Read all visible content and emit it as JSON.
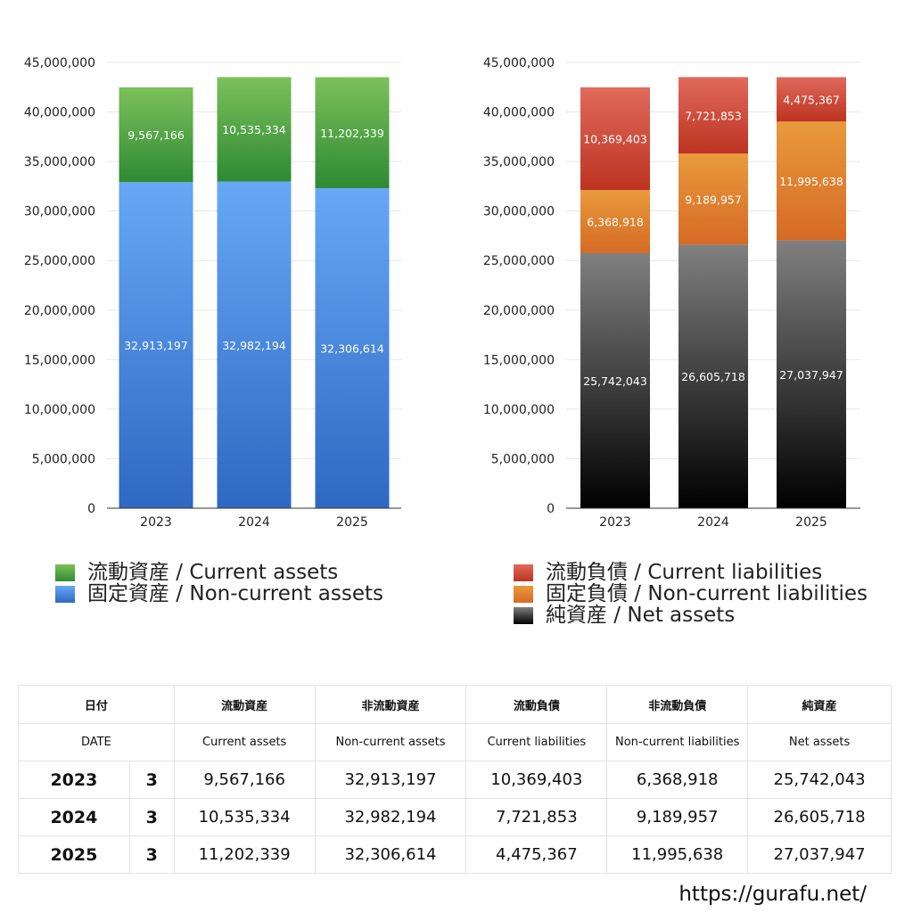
{
  "chart_data": [
    {
      "type": "bar",
      "stacked": true,
      "categories": [
        "2023",
        "2024",
        "2025"
      ],
      "ylim": [
        0,
        45000000
      ],
      "yticks": [
        "0",
        "5,000,000",
        "10,000,000",
        "15,000,000",
        "20,000,000",
        "25,000,000",
        "30,000,000",
        "35,000,000",
        "40,000,000",
        "45,000,000"
      ],
      "grid": true,
      "legend_position": "bottom",
      "series": [
        {
          "name": "固定資産 / Non-current assets",
          "values": [
            32913197,
            32982194,
            32306614
          ],
          "labels": [
            "32,913,197",
            "32,982,194",
            "32,306,614"
          ],
          "color_top": "#66a8f5",
          "color_bottom": "#2f68c2"
        },
        {
          "name": "流動資産 / Current assets",
          "values": [
            9567166,
            10535334,
            11202339
          ],
          "labels": [
            "9,567,166",
            "10,535,334",
            "11,202,339"
          ],
          "color_top": "#7cc05a",
          "color_bottom": "#2e8a34"
        }
      ]
    },
    {
      "type": "bar",
      "stacked": true,
      "categories": [
        "2023",
        "2024",
        "2025"
      ],
      "ylim": [
        0,
        45000000
      ],
      "yticks": [
        "0",
        "5,000,000",
        "10,000,000",
        "15,000,000",
        "20,000,000",
        "25,000,000",
        "30,000,000",
        "35,000,000",
        "40,000,000",
        "45,000,000"
      ],
      "grid": true,
      "legend_position": "bottom",
      "series": [
        {
          "name": "純資産 / Net assets",
          "values": [
            25742043,
            26605718,
            27037947
          ],
          "labels": [
            "25,742,043",
            "26,605,718",
            "27,037,947"
          ],
          "color_top": "#808080",
          "color_bottom": "#000000"
        },
        {
          "name": "固定負債 / Non-current liabilities",
          "values": [
            6368918,
            9189957,
            11995638
          ],
          "labels": [
            "6,368,918",
            "9,189,957",
            "11,995,638"
          ],
          "color_top": "#e99a3c",
          "color_bottom": "#d56a25"
        },
        {
          "name": "流動負債 / Current liabilities",
          "values": [
            10369403,
            7721853,
            4475367
          ],
          "labels": [
            "10,369,403",
            "7,721,853",
            "4,475,367"
          ],
          "color_top": "#e06a5c",
          "color_bottom": "#bd3320"
        }
      ]
    }
  ],
  "legend_left": [
    {
      "label": "流動資産 / Current assets",
      "color": "#5aa844"
    },
    {
      "label": "固定資産 / Non-current assets",
      "color": "#4a86d8"
    }
  ],
  "legend_right": [
    {
      "label": "流動負債 / Current liabilities",
      "color": "#d4463a"
    },
    {
      "label": "固定負債 / Non-current liabilities",
      "color": "#e48a34"
    },
    {
      "label": "純資産 / Net assets",
      "color": "#333333"
    }
  ],
  "table": {
    "header_jp": [
      "日付",
      "流動資産",
      "非流動資産",
      "流動負債",
      "非流動負債",
      "純資産"
    ],
    "header_en": [
      "DATE",
      "Current assets",
      "Non-current assets",
      "Current liabilities",
      "Non-current liabilities",
      "Net assets"
    ],
    "rows": [
      {
        "year": "2023",
        "month": "3",
        "cells": [
          "9,567,166",
          "32,913,197",
          "10,369,403",
          "6,368,918",
          "25,742,043"
        ]
      },
      {
        "year": "2024",
        "month": "3",
        "cells": [
          "10,535,334",
          "32,982,194",
          "7,721,853",
          "9,189,957",
          "26,605,718"
        ]
      },
      {
        "year": "2025",
        "month": "3",
        "cells": [
          "11,202,339",
          "32,306,614",
          "4,475,367",
          "11,995,638",
          "27,037,947"
        ]
      }
    ]
  },
  "footer": {
    "url": "https://gurafu.net/"
  }
}
